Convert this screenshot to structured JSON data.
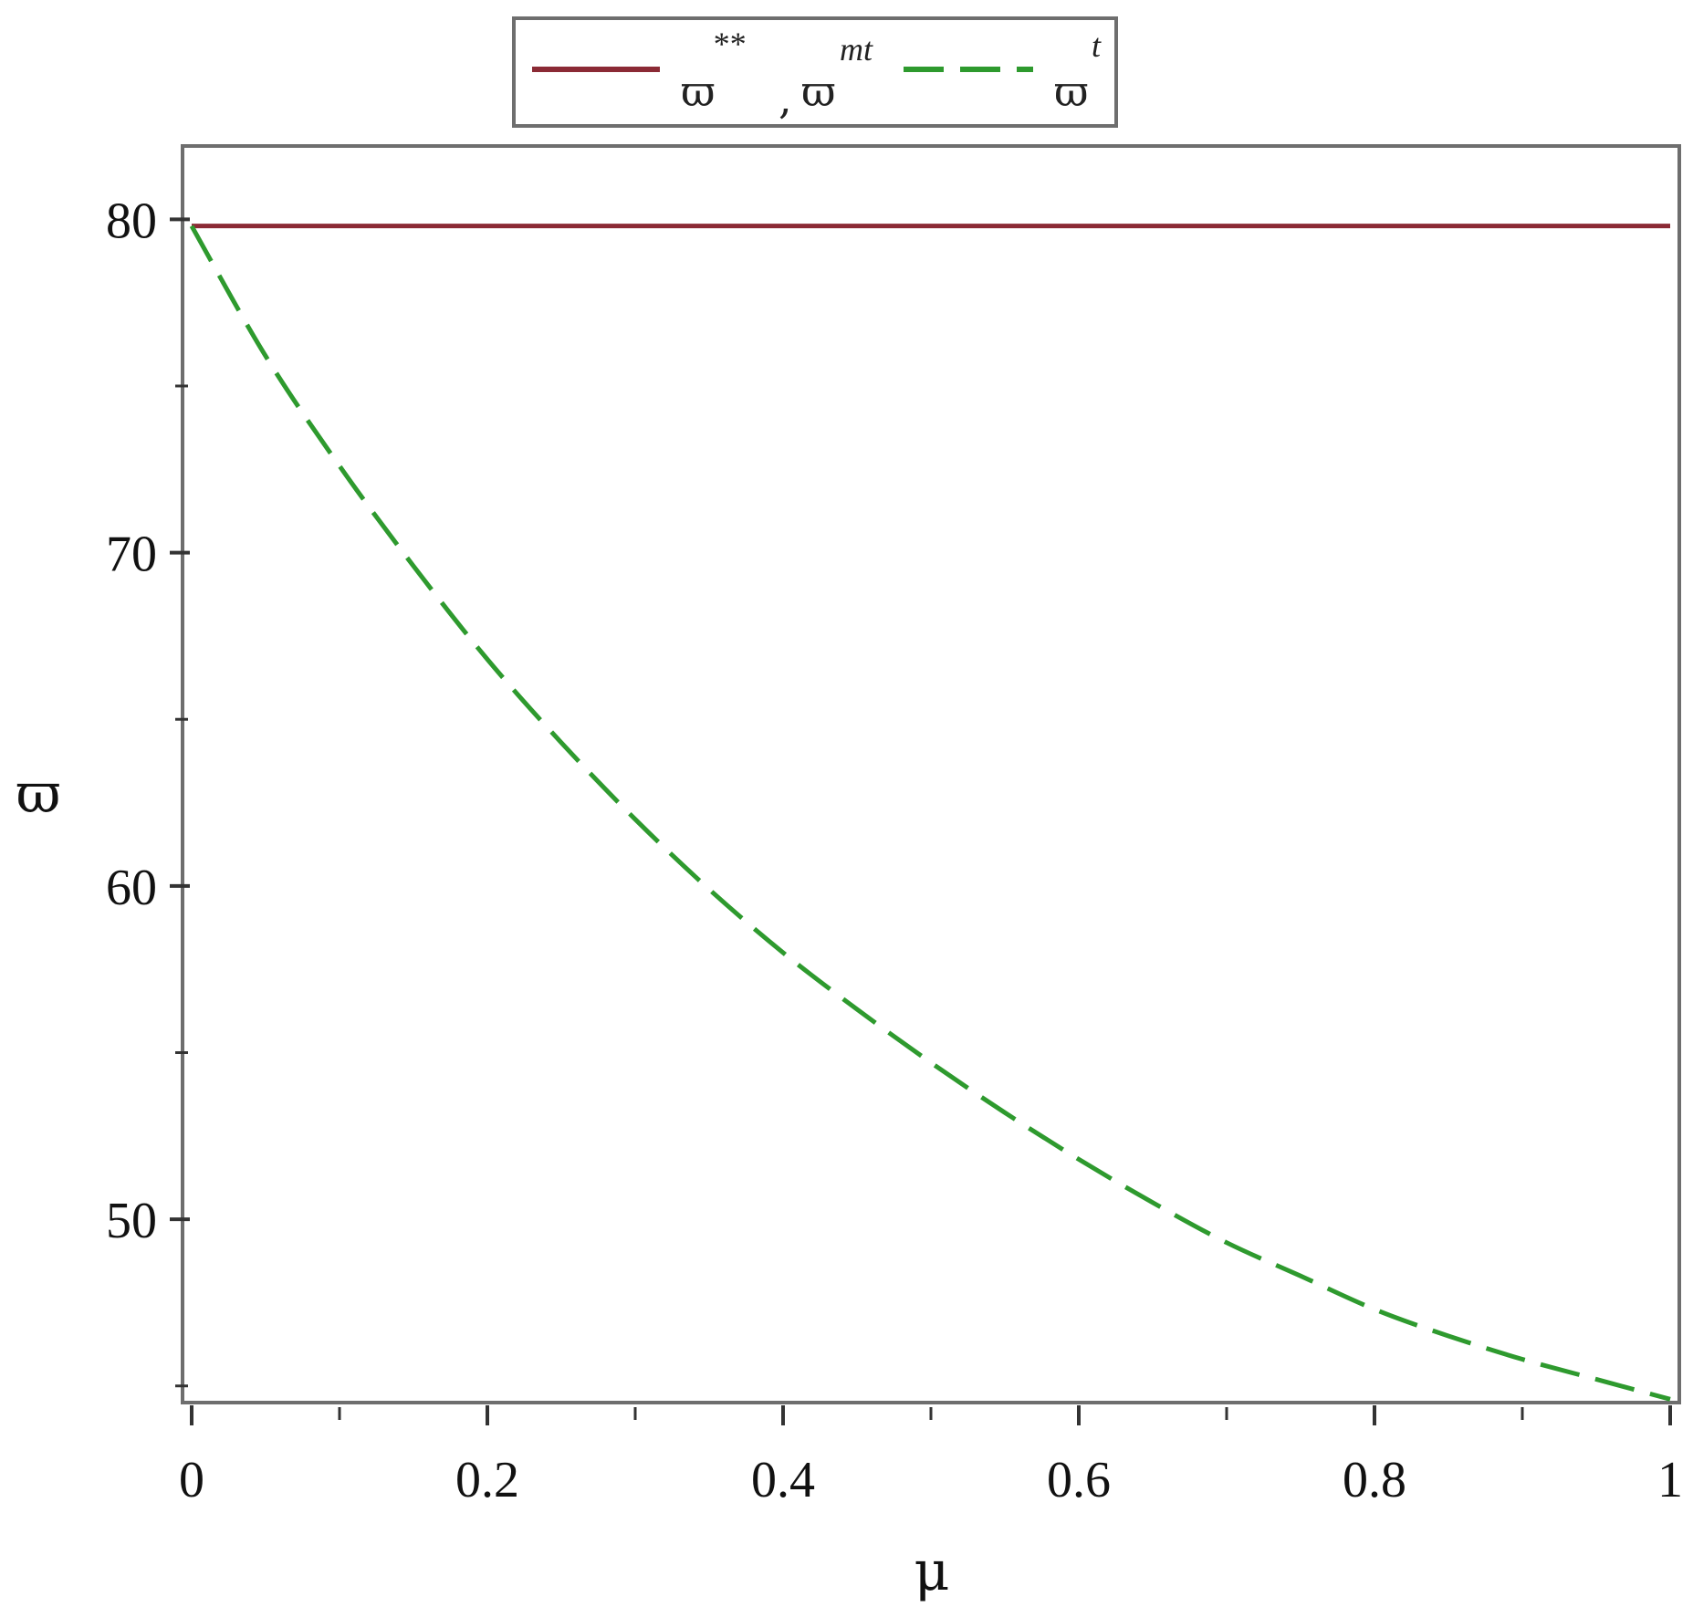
{
  "colors": {
    "series_solid": "#8b2a35",
    "series_dashed": "#2e9a2e",
    "frame": "#6e6e6e",
    "text": "#111111"
  },
  "legend": {
    "entries": [
      {
        "symbol": "ϖ",
        "sup": "**",
        "sep": ",",
        "symbol2": "ϖ",
        "sup2": "mt",
        "series": 0
      },
      {
        "symbol": "ϖ",
        "sup": "t",
        "series": 1
      }
    ]
  },
  "chart_data": {
    "type": "line",
    "xlabel": "μ",
    "ylabel": "ϖ",
    "xlim": [
      0,
      1
    ],
    "ylim": [
      44.5,
      82.2
    ],
    "x_ticks": [
      0,
      0.2,
      0.4,
      0.6,
      0.8,
      1
    ],
    "x_tick_labels": [
      "0",
      "0.2",
      "0.4",
      "0.6",
      "0.8",
      "1"
    ],
    "x_minor_ticks": [
      0.1,
      0.3,
      0.5,
      0.7,
      0.9
    ],
    "y_ticks": [
      50,
      60,
      70,
      80
    ],
    "y_tick_labels": [
      "50",
      "60",
      "70",
      "80"
    ],
    "y_minor_ticks": [
      45,
      55,
      65,
      75
    ],
    "grid": false,
    "legend_position": "top-center",
    "series": [
      {
        "style": "solid",
        "x": [
          0,
          1
        ],
        "y": [
          79.8,
          79.8
        ]
      },
      {
        "style": "dashed",
        "x": [
          0,
          0.05,
          0.1,
          0.15,
          0.2,
          0.25,
          0.3,
          0.35,
          0.4,
          0.45,
          0.5,
          0.55,
          0.6,
          0.65,
          0.7,
          0.75,
          0.8,
          0.85,
          0.9,
          0.95,
          1
        ],
        "y": [
          79.8,
          75.9,
          72.6,
          69.6,
          66.8,
          64.3,
          62.0,
          59.9,
          58.0,
          56.3,
          54.7,
          53.2,
          51.8,
          50.5,
          49.3,
          48.3,
          47.3,
          46.5,
          45.8,
          45.2,
          44.6
        ]
      }
    ]
  }
}
